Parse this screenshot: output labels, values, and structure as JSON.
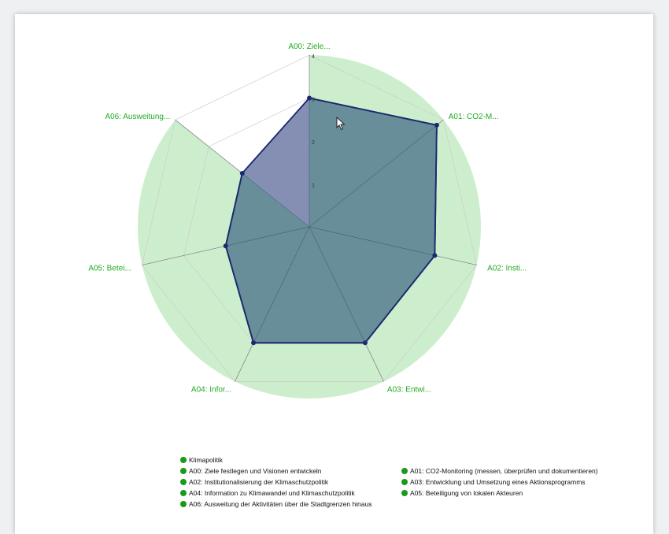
{
  "chart_data": {
    "type": "radar",
    "axes": [
      "A00: Ziele...",
      "A01: CO2-M...",
      "A02: Insti...",
      "A03: Entwi...",
      "A04: Infor...",
      "A05: Betei...",
      "A06: Ausweitung..."
    ],
    "rmax": 4,
    "ticks": [
      "1",
      "2",
      "3",
      "4"
    ],
    "series": [
      {
        "name": "Klimapolitik",
        "values": [
          3,
          3.8,
          3,
          3,
          3,
          2,
          2
        ]
      }
    ],
    "colors": {
      "background_sector": "#cdeecd",
      "fill_overlap": "#5f8595",
      "fill_light": "#8a8fb8",
      "stroke": "#1a2a6e",
      "grid": "#cccccc",
      "axis_label": "#22aa22",
      "legend_dot": "#1a9a1a"
    }
  },
  "legend": {
    "items": [
      "Klimapolitik",
      "A00: Ziele festlegen und Visionen entwickeln",
      "A01: CO2-Monitoring (messen, überprüfen und dokumentieren)",
      "A02: Institutionalisierung der Klimaschutzpolitik",
      "A03: Entwicklung und Umsetzung eines Aktionsprogramms",
      "A04: Information zu Klimawandel und Klimaschutzpolitik",
      "A05: Beteiligung von lokalen Akteuren",
      "A06: Ausweitung der Aktivitäten über die Stadtgrenzen hinaus"
    ]
  }
}
